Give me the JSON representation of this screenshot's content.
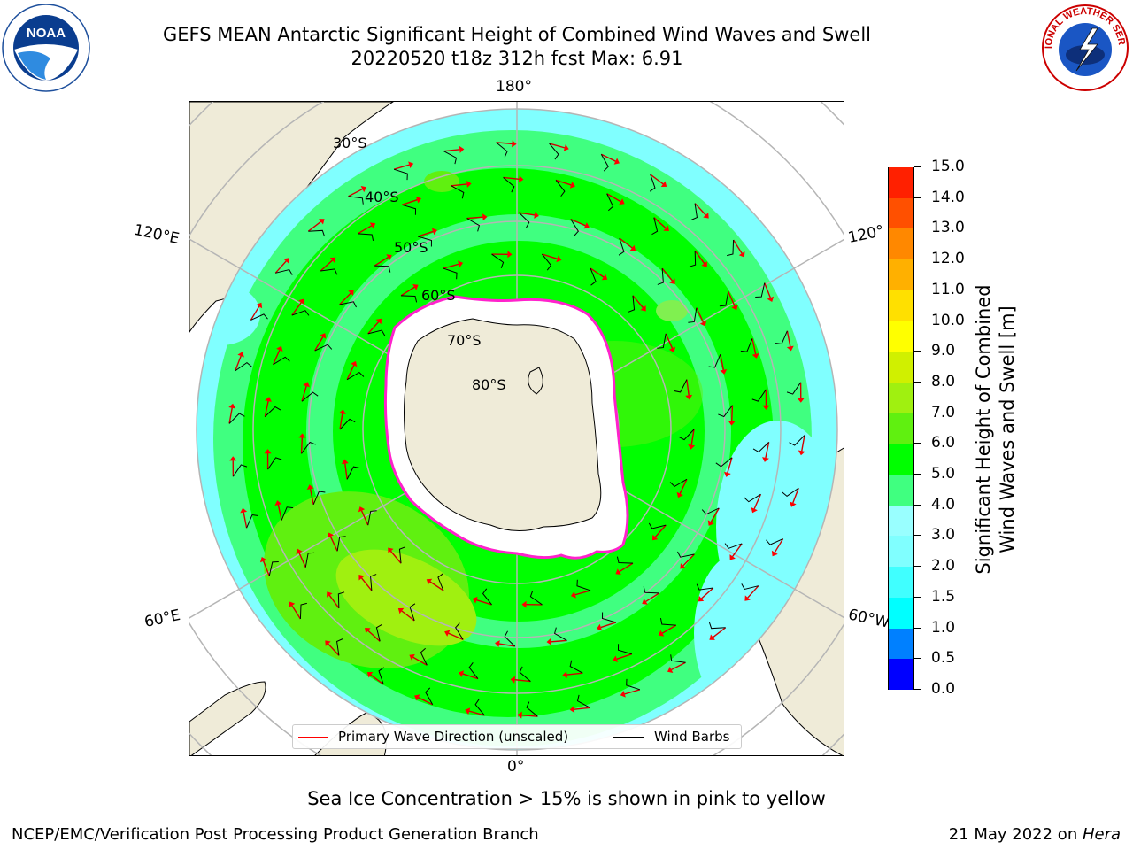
{
  "header": {
    "title_line1": "GEFS MEAN Antarctic Significant Height of Combined Wind Waves and Swell",
    "title_line2": "20220520 t18z 312h fcst   Max: 6.91"
  },
  "logos": {
    "left": "noaa-logo",
    "right": "nws-logo"
  },
  "map": {
    "projection": "south-polar-stereographic",
    "longitude_labels": {
      "top": "180°",
      "bottom": "0°",
      "upper_left": "120°E",
      "upper_right": "120°",
      "lower_left": "60°E",
      "lower_right": "60°W"
    },
    "latitude_labels": [
      "30°S",
      "40°S",
      "50°S",
      "60°S",
      "70°S",
      "80°S"
    ],
    "colors": {
      "land": "#efebd8",
      "ice": "#ffffff",
      "ice_edge": "#ff22cc",
      "wave_arrow": "#ff0000",
      "wind_barb": "#000000",
      "grid": "#b5b5b5"
    }
  },
  "legend": {
    "wave_label": "Primary Wave Direction (unscaled)",
    "barb_label": "Wind Barbs"
  },
  "colorbar": {
    "label_line1": "Significant Height of Combined",
    "label_line2": "Wind Waves and Swell [m]",
    "ticks": [
      "0.0",
      "0.5",
      "1.0",
      "1.5",
      "2.0",
      "3.0",
      "4.0",
      "5.0",
      "6.0",
      "7.0",
      "8.0",
      "9.0",
      "10.0",
      "11.0",
      "12.0",
      "13.0",
      "14.0",
      "15.0"
    ],
    "colors": [
      "#0000ff",
      "#0080ff",
      "#00ffff",
      "#40ffff",
      "#80ffff",
      "#99ffff",
      "#40ff80",
      "#00ff00",
      "#60f010",
      "#a0f010",
      "#d0f000",
      "#ffff00",
      "#ffe000",
      "#ffb000",
      "#ff8800",
      "#ff5000",
      "#ff2000"
    ]
  },
  "caption": "Sea Ice Concentration > 15% is shown in pink to yellow",
  "footer": {
    "left": "NCEP/EMC/Verification Post Processing Product Generation Branch",
    "right_date": "21 May 2022 on ",
    "right_host": "Hera"
  }
}
